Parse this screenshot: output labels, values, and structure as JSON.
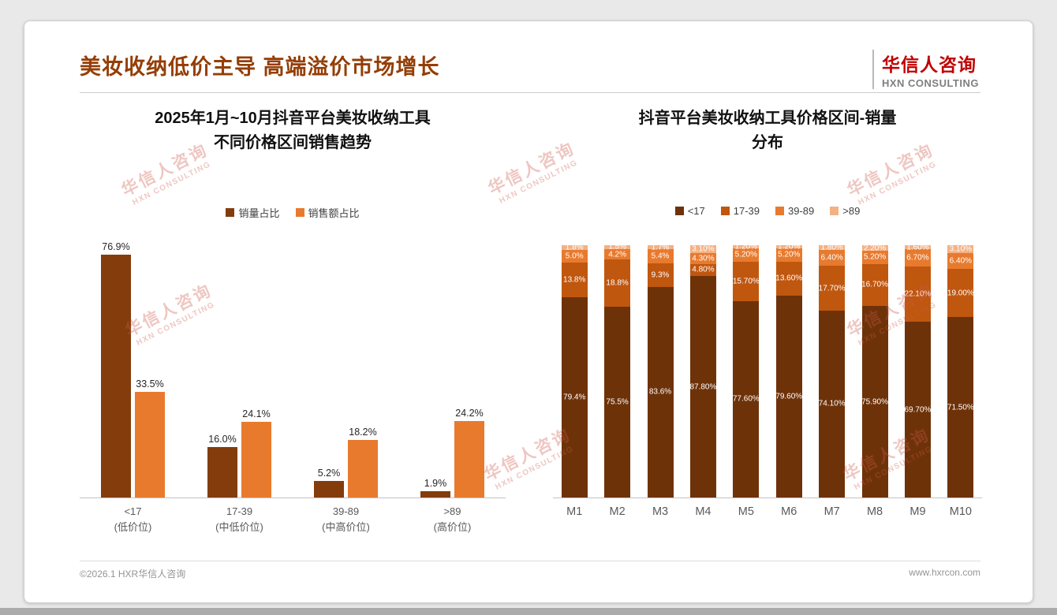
{
  "page": {
    "title": "美妆收纳低价主导 高端溢价市场增长",
    "logo": {
      "cn": "华信人咨询",
      "en": "HXN CONSULTING"
    },
    "watermark": {
      "cn": "华信人咨询",
      "en": "HXN CONSULTING"
    },
    "footer": {
      "left": "©2026.1 HXR华信人咨询",
      "right": "www.hxrcon.com"
    }
  },
  "colors": {
    "title_brown": "#943e06",
    "logo_red": "#c00000",
    "dark_brown": "#843C0C",
    "orange": "#E87A2E",
    "deep_brown": "#6E3209",
    "mid_orange": "#C0570F",
    "light_peach": "#F4B183"
  },
  "chart_data": [
    {
      "type": "bar",
      "stacked": false,
      "title": "2025年1月~10月抖音平台美妆收纳工具\n不同价格区间销售趋势",
      "categories": [
        {
          "label": "<17",
          "sub": "(低价位)"
        },
        {
          "label": "17-39",
          "sub": "(中低价位)"
        },
        {
          "label": "39-89",
          "sub": "(中高价位)"
        },
        {
          "label": ">89",
          "sub": "(高价位)"
        }
      ],
      "ylim": [
        0,
        80
      ],
      "grid": false,
      "legend_position": "top",
      "series": [
        {
          "name": "销量占比",
          "color": "#843C0C",
          "values": [
            76.9,
            16.0,
            5.2,
            1.9
          ],
          "labels": [
            "76.9%",
            "16.0%",
            "5.2%",
            "1.9%"
          ]
        },
        {
          "name": "销售额占比",
          "color": "#E87A2E",
          "values": [
            33.5,
            24.1,
            18.2,
            24.2
          ],
          "labels": [
            "33.5%",
            "24.1%",
            "18.2%",
            "24.2%"
          ]
        }
      ]
    },
    {
      "type": "bar",
      "stacked": true,
      "title": "抖音平台美妆收纳工具价格区间-销量\n分布",
      "categories": [
        "M1",
        "M2",
        "M3",
        "M4",
        "M5",
        "M6",
        "M7",
        "M8",
        "M9",
        "M10"
      ],
      "ylim": [
        0,
        100
      ],
      "grid": false,
      "legend_position": "top",
      "series": [
        {
          "name": "<17",
          "color": "#6E3209",
          "values": [
            79.4,
            75.5,
            83.6,
            87.8,
            77.6,
            79.6,
            74.1,
            75.9,
            69.7,
            71.5
          ],
          "labels": [
            "79.4%",
            "75.5%",
            "83.6%",
            "87.80%",
            "77.60%",
            "79.60%",
            "74.10%",
            "75.90%",
            "69.70%",
            "71.50%"
          ]
        },
        {
          "name": "17-39",
          "color": "#C0570F",
          "values": [
            13.8,
            18.8,
            9.3,
            4.8,
            15.7,
            13.6,
            17.7,
            16.7,
            22.1,
            19.0
          ],
          "labels": [
            "13.8%",
            "18.8%",
            "9.3%",
            "4.80%",
            "15.70%",
            "13.60%",
            "17.70%",
            "16.70%",
            "22.10%",
            "19.00%"
          ]
        },
        {
          "name": "39-89",
          "color": "#E87A2E",
          "values": [
            5.0,
            4.2,
            5.4,
            4.3,
            5.2,
            5.2,
            6.4,
            5.2,
            6.7,
            6.4
          ],
          "labels": [
            "5.0%",
            "4.2%",
            "5.4%",
            "4.30%",
            "5.20%",
            "5.20%",
            "6.40%",
            "5.20%",
            "6.70%",
            "6.40%"
          ]
        },
        {
          "name": ">89",
          "color": "#F4B183",
          "values": [
            1.8,
            1.5,
            1.7,
            3.1,
            1.2,
            1.2,
            1.8,
            2.2,
            1.6,
            3.1
          ],
          "labels": [
            "1.8%",
            "1.5%",
            "1.7%",
            "3.10%",
            "1.20%",
            "1.20%",
            "1.80%",
            "2.20%",
            "1.60%",
            "3.10%"
          ]
        }
      ]
    }
  ]
}
